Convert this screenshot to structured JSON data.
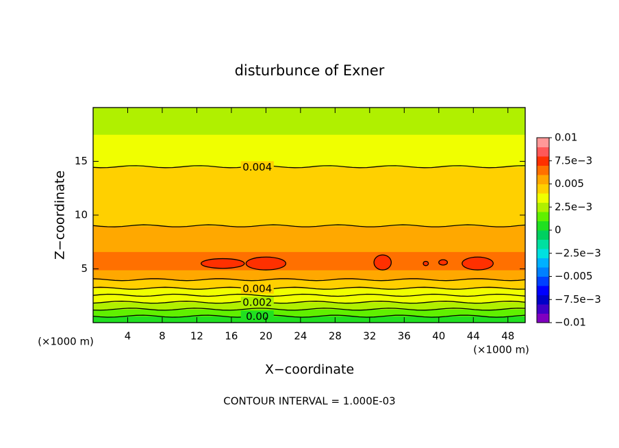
{
  "chart_data": {
    "type": "contour",
    "title": "disturbunce of Exner",
    "xlabel": "X−coordinate",
    "ylabel": "Z−coordinate",
    "x_unit_left": "(×1000 m)",
    "x_unit_right": "(×1000 m)",
    "footer": "CONTOUR INTERVAL = 1.000E-03",
    "xlim": [
      0,
      50
    ],
    "ylim": [
      0,
      20
    ],
    "xticks": [
      4,
      8,
      12,
      16,
      20,
      24,
      28,
      32,
      36,
      40,
      44,
      48
    ],
    "yticks": [
      5,
      10,
      15
    ],
    "colorbar": {
      "lim": [
        -0.01,
        0.01
      ],
      "step": 0.001,
      "colors": [
        "#8000c0",
        "#4000c8",
        "#0000c8",
        "#0000ff",
        "#0040ff",
        "#0080ff",
        "#00b0ff",
        "#00e0e0",
        "#00e0a0",
        "#00d060",
        "#20e020",
        "#60f000",
        "#b0f000",
        "#f0ff00",
        "#ffd000",
        "#ffa800",
        "#ff7000",
        "#ff3000",
        "#ff5858",
        "#ff9898"
      ],
      "ticks": [
        {
          "value": 0.01,
          "label": "0.01"
        },
        {
          "value": 0.0075,
          "label": "7.5e−3"
        },
        {
          "value": 0.005,
          "label": "0.005"
        },
        {
          "value": 0.0025,
          "label": "2.5e−3"
        },
        0,
        {
          "value": -0.0025,
          "label": "−2.5e−3"
        },
        {
          "value": -0.005,
          "label": "−0.005"
        },
        {
          "value": -0.0075,
          "label": "−7.5e−3"
        },
        {
          "value": -0.01,
          "label": "−0.01"
        }
      ]
    },
    "bands": [
      {
        "z": [
          0,
          0.6
        ],
        "value": 0.0005
      },
      {
        "z": [
          0.6,
          1.25
        ],
        "value": 0.0015
      },
      {
        "z": [
          1.25,
          1.9
        ],
        "value": 0.0025
      },
      {
        "z": [
          1.9,
          3.2
        ],
        "value": 0.0035
      },
      {
        "z": [
          3.2,
          4.0
        ],
        "value": 0.0045
      },
      {
        "z": [
          4.0,
          4.9
        ],
        "value": 0.0055
      },
      {
        "z": [
          4.9,
          6.6
        ],
        "value": 0.0065
      },
      {
        "z": [
          6.6,
          9.0
        ],
        "value": 0.0055
      },
      {
        "z": [
          9.0,
          14.5
        ],
        "value": 0.0045
      },
      {
        "z": [
          14.5,
          17.5
        ],
        "value": 0.0035
      },
      {
        "z": [
          17.5,
          20
        ],
        "value": 0.0025
      }
    ],
    "contours": [
      {
        "z": 0.6,
        "level": 0,
        "label": "0.00"
      },
      {
        "z": 1.25,
        "level": 0.001
      },
      {
        "z": 1.9,
        "level": 0.002,
        "label": "0.002"
      },
      {
        "z": 2.55,
        "level": 0.003
      },
      {
        "z": 3.2,
        "level": 0.004,
        "label": "0.004"
      },
      {
        "z": 4.0,
        "level": 0.005
      },
      {
        "z": 9.0,
        "level": 0.005
      },
      {
        "z": 14.5,
        "level": 0.004,
        "label": "0.004"
      }
    ],
    "blobs": [
      {
        "x": 15,
        "z": 5.5,
        "rx": 2.5,
        "rz": 0.45,
        "level": 0.007
      },
      {
        "x": 20,
        "z": 5.5,
        "rx": 2.3,
        "rz": 0.6,
        "level": 0.007
      },
      {
        "x": 33.5,
        "z": 5.6,
        "rx": 1,
        "rz": 0.7,
        "level": 0.007
      },
      {
        "x": 38.5,
        "z": 5.5,
        "rx": 0.3,
        "rz": 0.2,
        "level": 0.007
      },
      {
        "x": 40.5,
        "z": 5.6,
        "rx": 0.5,
        "rz": 0.25,
        "level": 0.007
      },
      {
        "x": 44.5,
        "z": 5.5,
        "rx": 1.8,
        "rz": 0.6,
        "level": 0.007
      }
    ]
  }
}
